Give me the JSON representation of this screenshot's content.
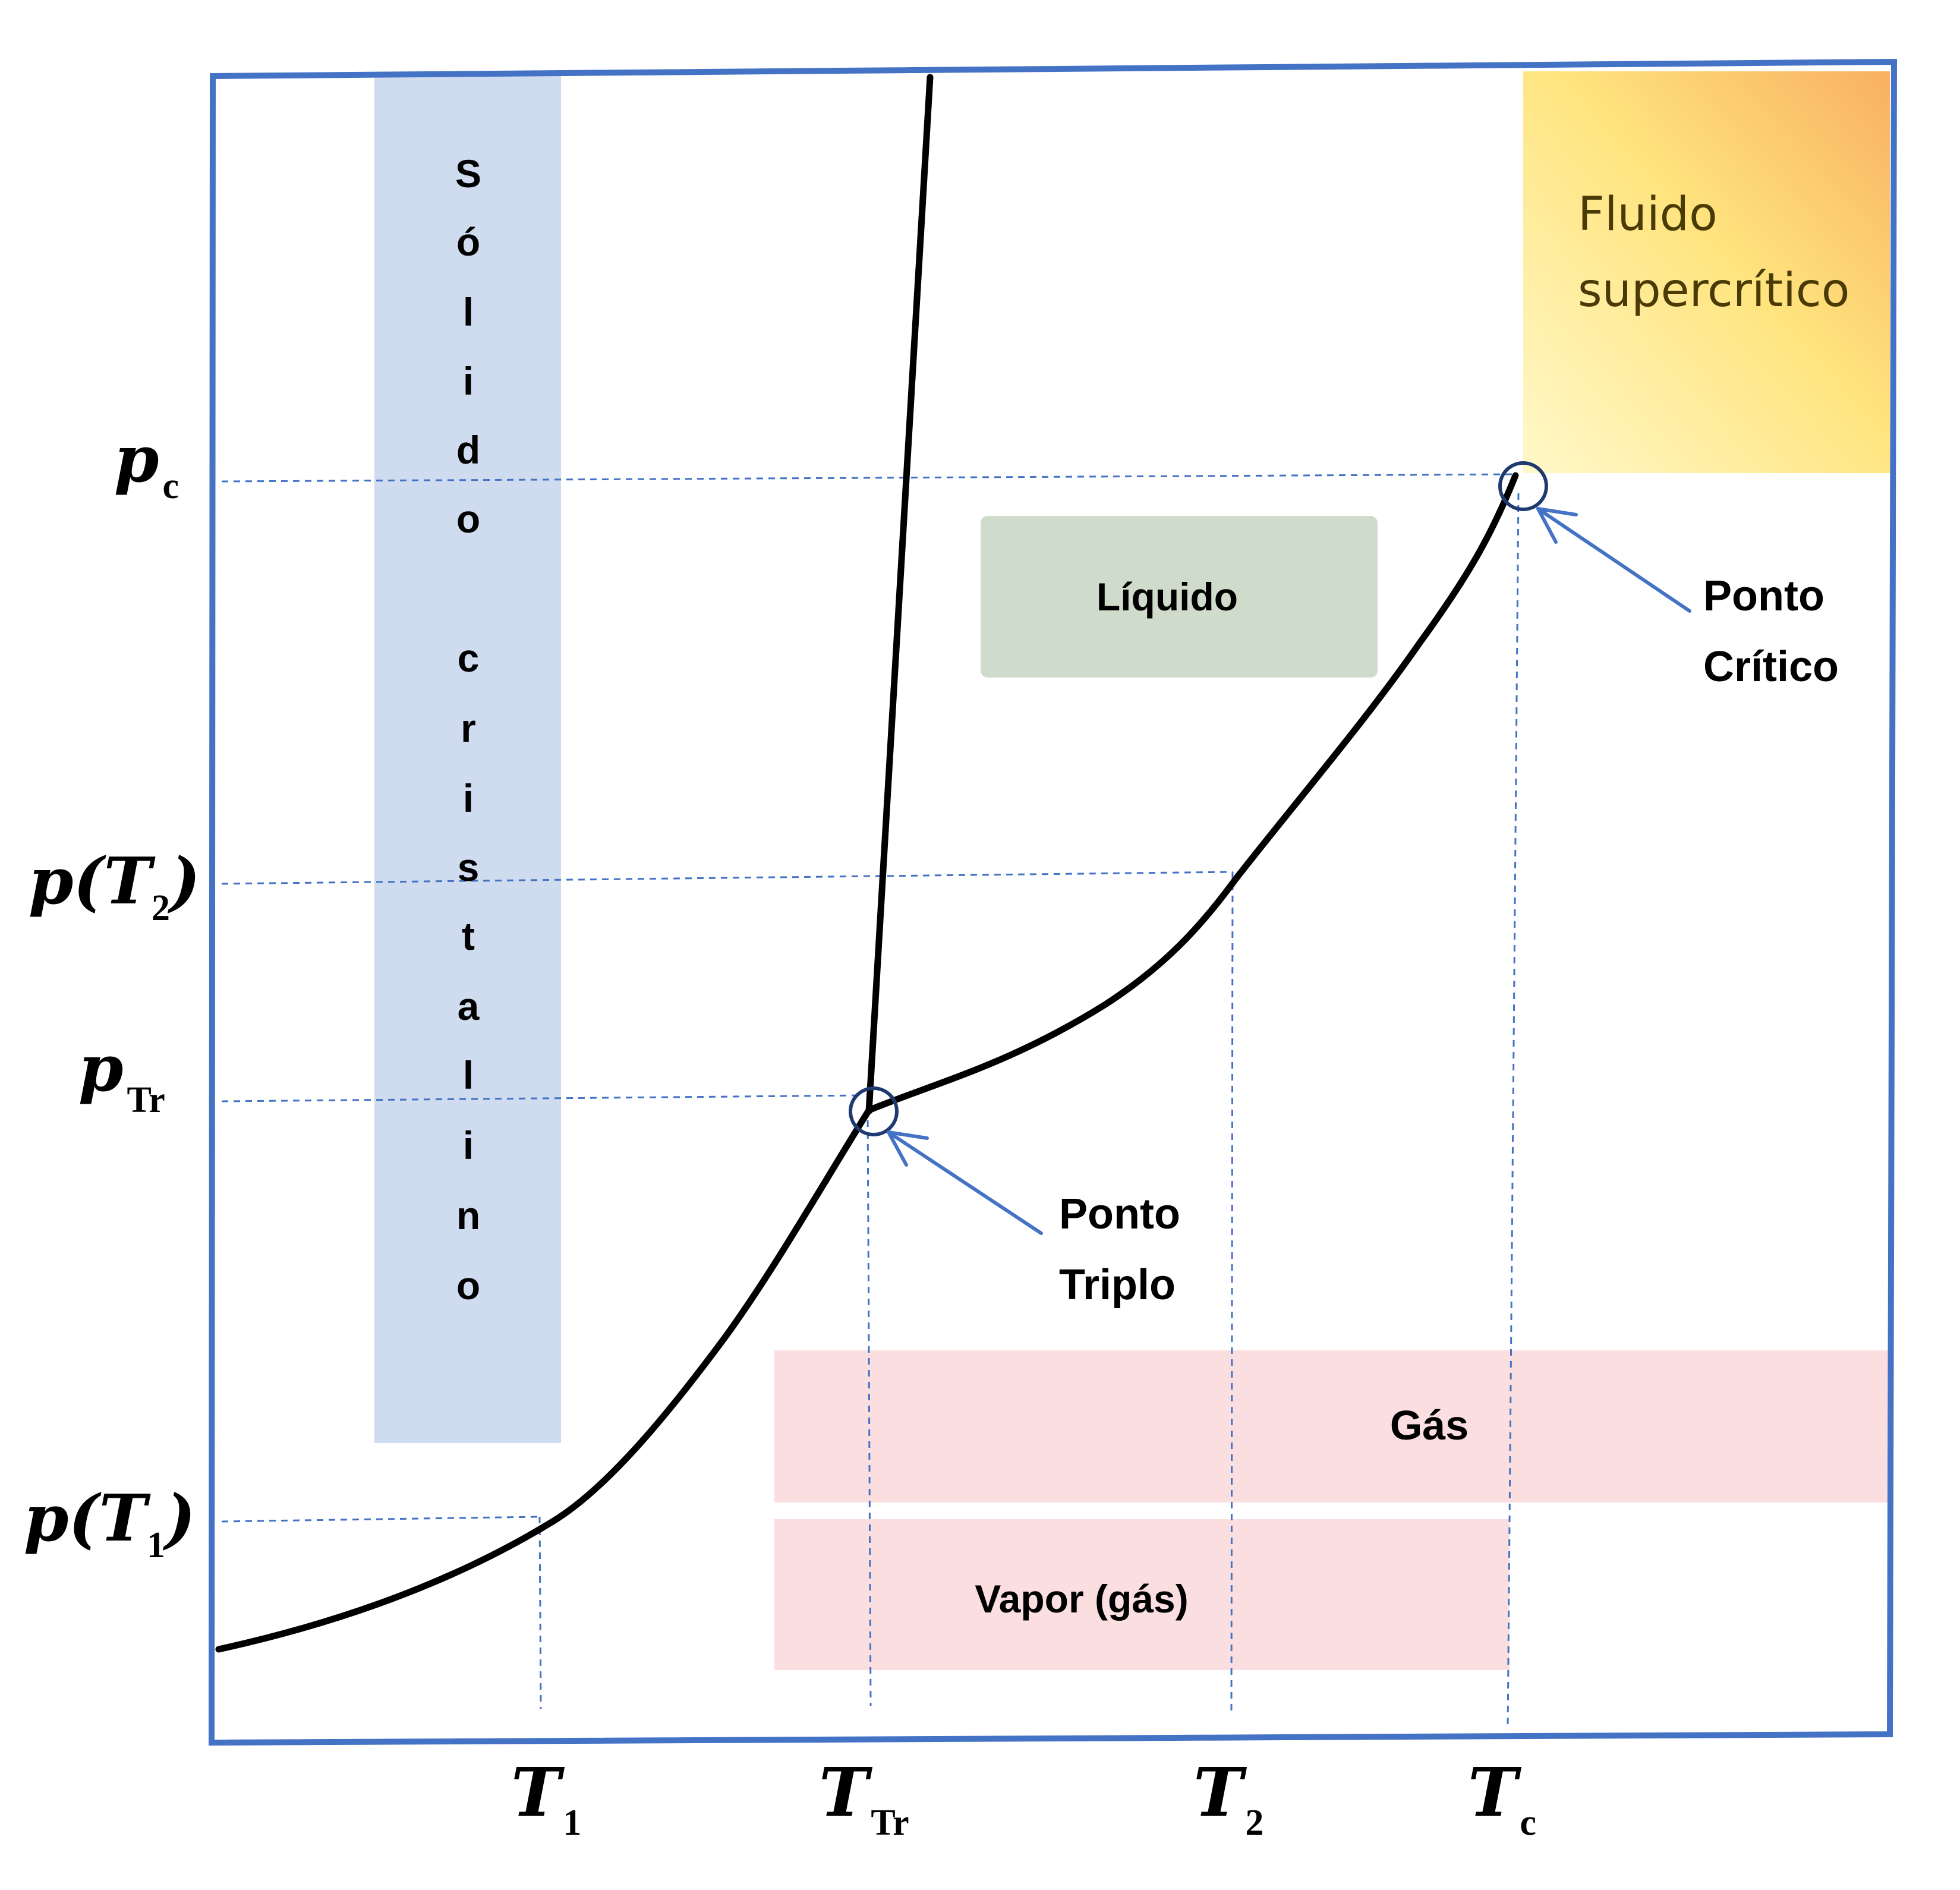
{
  "regions": {
    "solid": [
      "S",
      "ó",
      "l",
      "i",
      "d",
      "o",
      "c",
      "r",
      "i",
      "s",
      "t",
      "a",
      "l",
      "i",
      "n",
      "o"
    ],
    "liquid": "Líquido",
    "gas": "Gás",
    "vapor": "Vapor (gás)",
    "supercritical": [
      "Fluido",
      "supercrítico"
    ]
  },
  "annotations": {
    "triple_point": [
      "Ponto",
      "Triplo"
    ],
    "critical_point": [
      "Ponto",
      "Crítico"
    ]
  },
  "y_axis_labels": {
    "pc": {
      "main": "p",
      "sub": "c"
    },
    "pT2": {
      "pre": "p(",
      "main": "T",
      "sub": "2",
      "post": ")"
    },
    "pTr": {
      "main": "p",
      "sub": "Tr"
    },
    "pT1": {
      "pre": "p(",
      "main": "T",
      "sub": "1",
      "post": ")"
    }
  },
  "x_axis_labels": {
    "T1": {
      "main": "T",
      "sub": "1"
    },
    "TTr": {
      "main": "T",
      "sub": "Tr"
    },
    "T2": {
      "main": "T",
      "sub": "2"
    },
    "Tc": {
      "main": "T",
      "sub": "c"
    }
  },
  "colors": {
    "frame": "#4472c4",
    "solid_region": "#cfdcef",
    "liquid_region": "#d0dccb",
    "gas_region": "#fbdfe0",
    "supercritical_light": "#fff5b8",
    "supercritical_mid": "#ffe27a",
    "supercritical_dark": "#f8b15c",
    "curves": "#000000",
    "markers": "#1f3a6e",
    "arrows": "#4472c4"
  }
}
